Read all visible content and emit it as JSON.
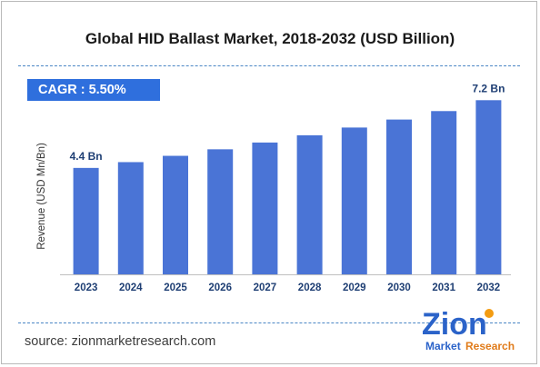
{
  "title": "Global HID Ballast Market, 2018-2032 (USD Billion)",
  "cagr_label": "CAGR :  5.50%",
  "source": "source: zionmarketresearch.com",
  "logo": {
    "word": "Zion",
    "sub1": "Market",
    "sub2": "Research",
    "icon": "zion-logo-icon"
  },
  "colors": {
    "bar": "#4a74d6",
    "accent": "#2f6fdd",
    "label": "#1f3f74",
    "separator": "#4a86c5"
  },
  "chart_data": {
    "type": "bar",
    "title": "Global HID Ballast Market, 2018-2032 (USD Billion)",
    "ylabel": "Revenue (USD Mn/Bn)",
    "xlabel": "",
    "categories": [
      "2023",
      "2024",
      "2025",
      "2026",
      "2027",
      "2028",
      "2029",
      "2030",
      "2031",
      "2032"
    ],
    "values": [
      4.4,
      4.64,
      4.9,
      5.17,
      5.45,
      5.75,
      6.07,
      6.4,
      6.75,
      7.2
    ],
    "data_labels": {
      "0": "4.4 Bn",
      "9": "7.2 Bn"
    },
    "ylim": [
      0,
      8
    ],
    "grid": false,
    "legend": "none"
  }
}
